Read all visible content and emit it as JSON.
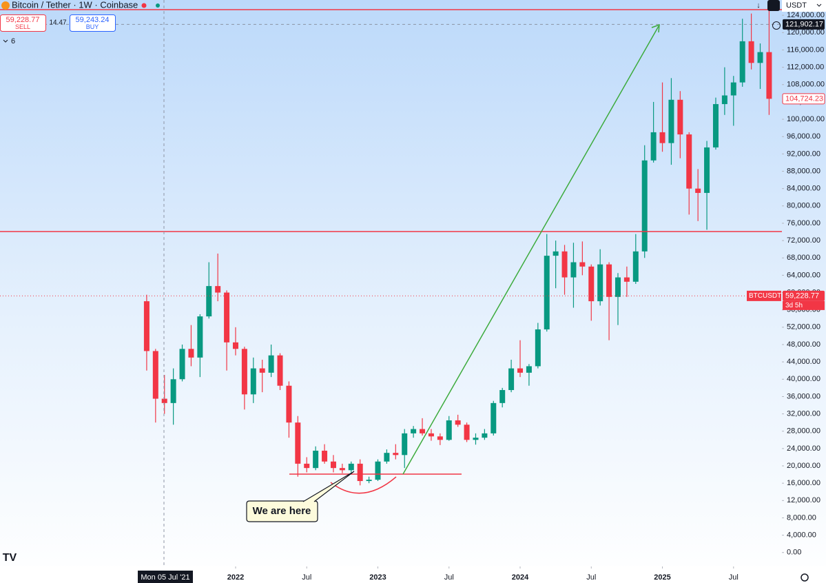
{
  "chart_data": {
    "type": "candlestick",
    "symbol_title": "Bitcoin / Tether · 1W · Coinbase",
    "sell_price": "59,228.77",
    "sell_label": "SELL",
    "spread": "14.47",
    "buy_price": "59,243.24",
    "buy_label": "BUY",
    "indicator_count": "6",
    "currency": "USDT",
    "symbol_tag": "BTCUSDT",
    "countdown": "3d 5h",
    "crosshair_date": "Mon 05 Jul '21",
    "annotation": "We are here",
    "price_markers": [
      {
        "value": 121902.17,
        "label": "121,902.17"
      },
      {
        "value": 104724.23,
        "label": "104,724.23"
      },
      {
        "value": 59228.77,
        "label": "59,228.77"
      }
    ],
    "xlim": [
      2020.344,
      2025.84
    ],
    "xticks": [
      2022,
      {
        "value": 2022.5,
        "label": "Jul"
      },
      2023,
      {
        "value": 2023.5,
        "label": "Jul"
      },
      2024,
      {
        "value": 2024.5,
        "label": "Jul"
      },
      2025,
      {
        "value": 2025.5,
        "label": "Jul"
      }
    ],
    "ylim": [
      -2900,
      125300
    ],
    "yticks": [
      {
        "value": 0,
        "label": "0.00"
      },
      {
        "value": 4000,
        "label": "4,000.00"
      },
      {
        "value": 8000,
        "label": "8,000.00"
      },
      {
        "value": 12000,
        "label": "12,000.00"
      },
      {
        "value": 16000,
        "label": "16,000.00"
      },
      {
        "value": 20000,
        "label": "20,000.00"
      },
      {
        "value": 24000,
        "label": "24,000.00"
      },
      {
        "value": 28000,
        "label": "28,000.00"
      },
      {
        "value": 32000,
        "label": "32,000.00"
      },
      {
        "value": 36000,
        "label": "36,000.00"
      },
      {
        "value": 40000,
        "label": "40,000.00"
      },
      {
        "value": 44000,
        "label": "44,000.00"
      },
      {
        "value": 48000,
        "label": "48,000.00"
      },
      {
        "value": 52000,
        "label": "52,000.00"
      },
      {
        "value": 56000,
        "label": "56,000.00"
      },
      {
        "value": 60000,
        "label": "60,000.00"
      },
      {
        "value": 64000,
        "label": "64,000.00"
      },
      {
        "value": 68000,
        "label": "68,000.00"
      },
      {
        "value": 72000,
        "label": "72,000.00"
      },
      {
        "value": 76000,
        "label": "76,000.00"
      },
      {
        "value": 80000,
        "label": "80,000.00"
      },
      {
        "value": 84000,
        "label": "84,000.00"
      },
      {
        "value": 88000,
        "label": "88,000.00"
      },
      {
        "value": 92000,
        "label": "92,000.00"
      },
      {
        "value": 96000,
        "label": "96,000.00"
      },
      {
        "value": 100000,
        "label": "100,000.00"
      },
      {
        "value": 104000,
        "label": "104,000.00"
      },
      {
        "value": 108000,
        "label": "108,000.00"
      },
      {
        "value": 112000,
        "label": "112,000.00"
      },
      {
        "value": 116000,
        "label": "116,000.00"
      },
      {
        "value": 120000,
        "label": "120,000.00"
      },
      {
        "value": 124000,
        "label": "124,000.00"
      }
    ],
    "up_color": "#089981",
    "down_color": "#f23645",
    "x": [
      2021.375,
      2021.4375,
      2021.5,
      2021.5625,
      2021.625,
      2021.6875,
      2021.75,
      2021.8125,
      2021.875,
      2021.9375,
      2022.0,
      2022.0625,
      2022.125,
      2022.1875,
      2022.25,
      2022.3125,
      2022.375,
      2022.4375,
      2022.5,
      2022.5625,
      2022.625,
      2022.6875,
      2022.75,
      2022.8125,
      2022.875,
      2022.9375,
      2023.0,
      2023.0625,
      2023.125,
      2023.1875,
      2023.25,
      2023.3125,
      2023.375,
      2023.4375,
      2023.5,
      2023.5625,
      2023.625,
      2023.6875,
      2023.75,
      2023.8125,
      2023.875,
      2023.9375,
      2024.0,
      2024.0625,
      2024.125,
      2024.1875,
      2024.25,
      2024.3125,
      2024.375,
      2024.4375,
      2024.5,
      2024.5625,
      2024.625,
      2024.6875,
      2024.75,
      2024.8125,
      2024.875,
      2024.9375,
      2025.0,
      2025.0625,
      2025.125,
      2025.1875,
      2025.25,
      2025.3125,
      2025.375,
      2025.4375,
      2025.5,
      2025.5625,
      2025.625,
      2025.6875,
      2025.75
    ],
    "open": [
      58000,
      46500,
      35500,
      34500,
      40000,
      47000,
      45000,
      54500,
      61500,
      60000,
      48500,
      47000,
      36500,
      42500,
      41500,
      45500,
      38500,
      30000,
      20500,
      19500,
      23500,
      21000,
      19500,
      19000,
      20500,
      16500,
      16800,
      21000,
      23000,
      22500,
      27500,
      28500,
      27500,
      26800,
      26000,
      30500,
      29500,
      26000,
      26500,
      27500,
      34500,
      37500,
      42500,
      41500,
      43000,
      51500,
      68500,
      69500,
      63500,
      67000,
      66000,
      58000,
      66500,
      59000,
      63500,
      62500,
      69500,
      90500,
      97000,
      94500,
      104500,
      96500,
      84000,
      83000,
      93500,
      103500,
      105500,
      108500,
      118000,
      113000,
      115500
    ],
    "high": [
      59500,
      47000,
      41000,
      42500,
      48000,
      52500,
      55000,
      67000,
      69000,
      60500,
      52000,
      47500,
      45000,
      44500,
      48000,
      46000,
      39500,
      31500,
      22000,
      24500,
      25000,
      22500,
      20500,
      21000,
      21500,
      17500,
      21500,
      23800,
      25000,
      28500,
      29200,
      31000,
      28500,
      27500,
      31500,
      31800,
      30000,
      27500,
      28500,
      35000,
      38000,
      44500,
      49000,
      43500,
      53000,
      73500,
      72000,
      71000,
      71500,
      71800,
      66500,
      70000,
      67000,
      64500,
      66000,
      73500,
      94000,
      104000,
      108500,
      109500,
      106500,
      97000,
      88500,
      95000,
      105000,
      112000,
      110000,
      123200,
      124400,
      117500,
      126000
    ],
    "low": [
      42000,
      30000,
      32000,
      29500,
      39500,
      43000,
      40500,
      54000,
      58000,
      42000,
      45500,
      33000,
      34500,
      37000,
      40500,
      37500,
      26500,
      17500,
      18500,
      19000,
      20500,
      18500,
      18300,
      18500,
      15500,
      16000,
      16500,
      20500,
      21500,
      19500,
      26500,
      27000,
      25800,
      24800,
      25800,
      29000,
      25500,
      24900,
      26000,
      27000,
      33500,
      37000,
      40500,
      38500,
      42500,
      51000,
      61000,
      59500,
      56500,
      64000,
      53500,
      57000,
      49000,
      52500,
      59000,
      62000,
      68000,
      90000,
      92500,
      89500,
      91000,
      78000,
      76500,
      74500,
      93000,
      101000,
      98500,
      107500,
      111500,
      107000,
      101000
    ],
    "close": [
      46500,
      35500,
      34500,
      40000,
      47000,
      45000,
      54500,
      61500,
      60000,
      48500,
      47000,
      36500,
      42500,
      41500,
      45500,
      38500,
      30000,
      20500,
      19500,
      23500,
      21000,
      19500,
      19000,
      20500,
      16500,
      16800,
      21000,
      23000,
      22500,
      27500,
      28500,
      27500,
      26800,
      26000,
      30500,
      29500,
      26000,
      26500,
      27500,
      34500,
      37500,
      42500,
      41500,
      43000,
      51500,
      68500,
      69500,
      63500,
      67000,
      66000,
      58000,
      66500,
      59000,
      63500,
      62500,
      69500,
      90500,
      97000,
      94500,
      104500,
      96500,
      84000,
      83000,
      93500,
      103500,
      105500,
      108500,
      118000,
      113000,
      115500,
      104724.23
    ]
  }
}
